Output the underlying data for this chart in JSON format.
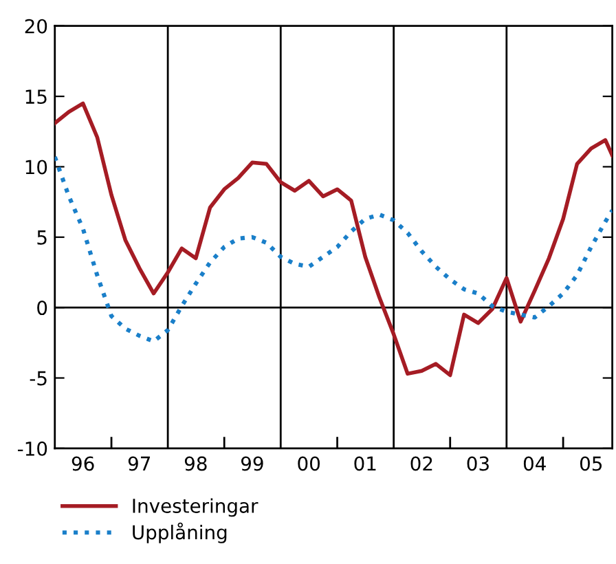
{
  "chart_data": {
    "type": "line",
    "xlim": [
      "1996-01-01",
      "2005-11-15"
    ],
    "xticks": [
      {
        "value": "1996-07-01",
        "label": "96"
      },
      {
        "value": "1997-01-01",
        "label": null
      },
      {
        "value": "1997-07-01",
        "label": "97"
      },
      {
        "value": "1998-07-01",
        "label": "98"
      },
      {
        "value": "1999-01-01",
        "label": null
      },
      {
        "value": "1999-07-01",
        "label": "99"
      },
      {
        "value": "2000-07-01",
        "label": "00"
      },
      {
        "value": "2001-01-01",
        "label": null
      },
      {
        "value": "2001-07-01",
        "label": "01"
      },
      {
        "value": "2002-07-01",
        "label": "02"
      },
      {
        "value": "2003-01-01",
        "label": null
      },
      {
        "value": "2003-07-01",
        "label": "03"
      },
      {
        "value": "2004-07-01",
        "label": "04"
      },
      {
        "value": "2005-01-01",
        "label": null
      },
      {
        "value": "2005-07-01",
        "label": "05"
      }
    ],
    "ylim": [
      -10,
      20
    ],
    "yticks": [
      -10,
      -5,
      0,
      5,
      10,
      15,
      20
    ],
    "grid": false,
    "legend": "bottom left",
    "ref_lines": [
      {
        "axis": "y",
        "value": 0,
        "color": "#000000"
      },
      {
        "axis": "x",
        "value": "1998-01-01",
        "color": "#000000"
      },
      {
        "axis": "x",
        "value": "2000-01-01",
        "color": "#000000"
      },
      {
        "axis": "x",
        "value": "2002-01-01",
        "color": "#000000"
      },
      {
        "axis": "x",
        "value": "2004-01-01",
        "color": "#000000"
      }
    ],
    "series": [
      {
        "name": "Investeringar",
        "color": "#a51c24",
        "line_style": "solid",
        "x": [
          "1996-01-01",
          "1996-04-01",
          "1996-07-01",
          "1996-10-01",
          "1997-01-01",
          "1997-04-01",
          "1997-07-01",
          "1997-10-01",
          "1998-01-01",
          "1998-04-01",
          "1998-07-01",
          "1998-10-01",
          "1999-01-01",
          "1999-04-01",
          "1999-07-01",
          "1999-10-01",
          "2000-01-01",
          "2000-04-01",
          "2000-07-01",
          "2000-10-01",
          "2001-01-01",
          "2001-04-01",
          "2001-07-01",
          "2001-10-01",
          "2002-01-01",
          "2002-04-01",
          "2002-07-01",
          "2002-10-01",
          "2003-01-01",
          "2003-04-01",
          "2003-07-01",
          "2003-10-01",
          "2004-01-01",
          "2004-04-01",
          "2004-07-01",
          "2004-10-01",
          "2005-01-01",
          "2005-04-01",
          "2005-07-01",
          "2005-10-01",
          "2005-11-15"
        ],
        "values": [
          13.1,
          13.9,
          14.5,
          12.1,
          8.0,
          4.8,
          2.8,
          1.0,
          2.5,
          4.2,
          3.5,
          7.1,
          8.4,
          9.2,
          10.3,
          10.2,
          8.9,
          8.3,
          9.0,
          7.9,
          8.4,
          7.6,
          3.6,
          0.7,
          -1.9,
          -4.7,
          -4.5,
          -4.0,
          -4.8,
          -0.5,
          -1.1,
          -0.1,
          2.1,
          -1.0,
          1.2,
          3.5,
          6.3,
          10.2,
          11.3,
          11.9,
          10.8
        ]
      },
      {
        "name": "Upplåning",
        "color": "#1a7fc9",
        "line_style": "dotted",
        "x": [
          "1996-01-01",
          "1996-04-01",
          "1996-07-01",
          "1996-10-01",
          "1997-01-01",
          "1997-04-01",
          "1997-07-01",
          "1997-10-01",
          "1998-01-01",
          "1998-04-01",
          "1998-07-01",
          "1998-10-01",
          "1999-01-01",
          "1999-04-01",
          "1999-07-01",
          "1999-10-01",
          "2000-01-01",
          "2000-04-01",
          "2000-07-01",
          "2000-10-01",
          "2001-01-01",
          "2001-04-01",
          "2001-07-01",
          "2001-10-01",
          "2002-01-01",
          "2002-04-01",
          "2002-07-01",
          "2002-10-01",
          "2003-01-01",
          "2003-04-01",
          "2003-07-01",
          "2003-10-01",
          "2004-01-01",
          "2004-04-01",
          "2004-07-01",
          "2004-10-01",
          "2005-01-01",
          "2005-04-01",
          "2005-07-01",
          "2005-10-01",
          "2005-11-15"
        ],
        "values": [
          10.7,
          7.9,
          5.6,
          2.3,
          -0.6,
          -1.5,
          -2.0,
          -2.4,
          -1.6,
          0.1,
          1.7,
          3.2,
          4.3,
          4.9,
          5.0,
          4.6,
          3.6,
          3.1,
          2.9,
          3.6,
          4.3,
          5.4,
          6.3,
          6.6,
          6.2,
          5.3,
          4.0,
          2.9,
          2.0,
          1.3,
          1.0,
          0.1,
          -0.3,
          -0.5,
          -0.7,
          0.1,
          1.0,
          2.3,
          4.3,
          6.1,
          6.9
        ]
      }
    ]
  }
}
